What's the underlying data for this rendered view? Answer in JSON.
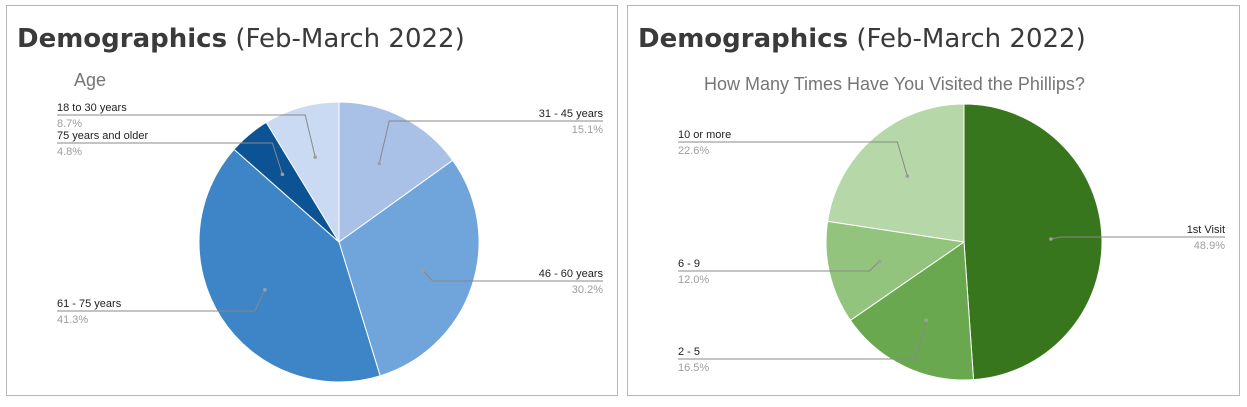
{
  "panels": [
    {
      "heading_bold": "Demographics",
      "heading_light": "(Feb-March 2022)"
    },
    {
      "heading_bold": "Demographics",
      "heading_light": "(Feb-March 2022)"
    }
  ],
  "chart_data": [
    {
      "type": "pie",
      "title": "Age",
      "start_angle_deg": 0,
      "direction": "clockwise",
      "slices": [
        {
          "label": "31 - 45 years",
          "value": 15.1,
          "pct": "15.1%",
          "color": "#a9c1e7"
        },
        {
          "label": "46 - 60 years",
          "value": 30.2,
          "pct": "30.2%",
          "color": "#6fa5da"
        },
        {
          "label": "61 - 75 years",
          "value": 41.3,
          "pct": "41.3%",
          "color": "#3d85c6"
        },
        {
          "label": "75 years and older",
          "value": 4.8,
          "pct": "4.8%",
          "color": "#0b5394"
        },
        {
          "label": "18 to 30 years",
          "value": 8.7,
          "pct": "8.7%",
          "color": "#c9daf2"
        }
      ]
    },
    {
      "type": "pie",
      "title": "How Many Times Have You Visited the Phillips?",
      "start_angle_deg": 0,
      "direction": "clockwise",
      "slices": [
        {
          "label": "1st Visit",
          "value": 48.9,
          "pct": "48.9%",
          "color": "#38761d"
        },
        {
          "label": "2 - 5",
          "value": 16.5,
          "pct": "16.5%",
          "color": "#6aa84f"
        },
        {
          "label": "6 - 9",
          "value": 12.0,
          "pct": "12.0%",
          "color": "#93c47d"
        },
        {
          "label": "10 or more",
          "value": 22.6,
          "pct": "22.6%",
          "color": "#b6d7a8"
        }
      ]
    }
  ]
}
